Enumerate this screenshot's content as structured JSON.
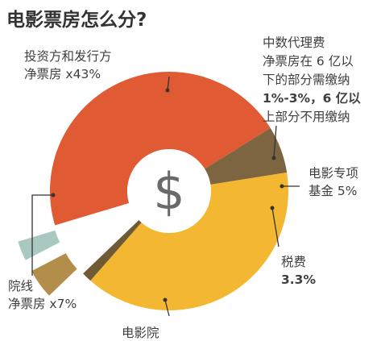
{
  "chart_data": {
    "type": "pie",
    "variant": "donut",
    "title": "电影票房怎么分?",
    "center_symbol": "$",
    "grid": false,
    "legend": "none",
    "slices": [
      {
        "key": "investor",
        "value": 43,
        "color": "#f3b731",
        "label_lines": [
          "投资方和发行方",
          "净票房 x43%"
        ]
      },
      {
        "key": "agency",
        "value": 1.5,
        "color": "#6e5a34",
        "label_lines": [
          "中数代理费",
          "净票房在 6 亿以",
          "下的部分需缴纳",
          "1%-3%，6 亿以",
          "上部分不用缴纳"
        ]
      },
      {
        "key": "fund",
        "value": 5,
        "color": "#b38e4a",
        "exploded": true,
        "label_lines": [
          "电影专项",
          "基金 5%"
        ]
      },
      {
        "key": "tax",
        "value": 3.3,
        "color": "#a8c8c0",
        "exploded": true,
        "label_lines": [
          "税费",
          "3.3%"
        ]
      },
      {
        "key": "cinema",
        "value": 50.5,
        "color": "#e05a34",
        "label_lines": [
          "电影院"
        ]
      },
      {
        "key": "chain",
        "value": 7,
        "color": "#7c6540",
        "label_lines": [
          "院线",
          "净票房 x7%"
        ]
      }
    ]
  }
}
